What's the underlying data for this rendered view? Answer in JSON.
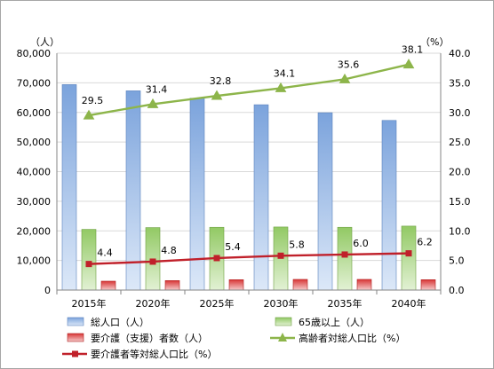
{
  "chart_data": {
    "type": "bar",
    "categories": [
      "2015年",
      "2020年",
      "2025年",
      "2030年",
      "2035年",
      "2040年"
    ],
    "left_unit": "（人）",
    "right_unit": "（%）",
    "ylim_left": [
      0,
      80000
    ],
    "ylim_right": [
      0,
      40
    ],
    "yticks_left": [
      "0",
      "10,000",
      "20,000",
      "30,000",
      "40,000",
      "50,000",
      "60,000",
      "70,000",
      "80,000"
    ],
    "yticks_right": [
      "0.0",
      "5.0",
      "10.0",
      "15.0",
      "20.0",
      "25.0",
      "30.0",
      "35.0",
      "40.0"
    ],
    "grid": true,
    "legend_position": "bottom",
    "series": [
      {
        "name": "総人口（人）",
        "kind": "bar",
        "axis": "left",
        "color": "#7ba3dc",
        "values": [
          69400,
          67300,
          64800,
          62600,
          59900,
          57300
        ]
      },
      {
        "name": "65歳以上（人）",
        "kind": "bar",
        "axis": "left",
        "color": "#92c964",
        "values": [
          20500,
          21100,
          21200,
          21300,
          21200,
          21600
        ]
      },
      {
        "name": "要介護（支援）者数（人）",
        "kind": "bar",
        "axis": "left",
        "color": "#d83636",
        "values": [
          3000,
          3200,
          3500,
          3600,
          3600,
          3500
        ]
      },
      {
        "name": "高齢者対総人口比（%）",
        "kind": "line",
        "axis": "right",
        "color": "#8db54a",
        "marker": "triangle",
        "values": [
          29.5,
          31.4,
          32.8,
          34.1,
          35.6,
          38.1
        ],
        "labels": [
          "29.5",
          "31.4",
          "32.8",
          "34.1",
          "35.6",
          "38.1"
        ]
      },
      {
        "name": "要介護者等対総人口比（%）",
        "kind": "line",
        "axis": "right",
        "color": "#c0202a",
        "marker": "square",
        "values": [
          4.4,
          4.8,
          5.4,
          5.8,
          6.0,
          6.2
        ],
        "labels": [
          "4.4",
          "4.8",
          "5.4",
          "5.8",
          "6.0",
          "6.2"
        ]
      }
    ]
  }
}
